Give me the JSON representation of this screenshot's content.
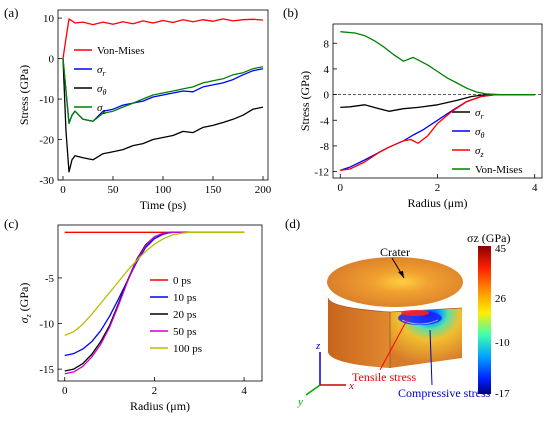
{
  "chart_data": [
    {
      "panel": "(a)",
      "type": "line",
      "xlabel": "Time (ps)",
      "ylabel": "Stress (GPa)",
      "xlim": [
        -5,
        205
      ],
      "ylim": [
        -30,
        12
      ],
      "xticks": [
        0,
        50,
        100,
        150,
        200
      ],
      "yticks": [
        -30,
        -20,
        -10,
        0,
        10
      ],
      "legend": "top-left",
      "series": [
        {
          "name": "Von-Mises",
          "color": "#ff0000",
          "x": [
            0,
            3,
            6,
            9,
            12,
            20,
            30,
            40,
            50,
            60,
            70,
            80,
            90,
            100,
            110,
            120,
            130,
            140,
            150,
            160,
            170,
            180,
            190,
            200
          ],
          "y": [
            0,
            5,
            9.8,
            9.3,
            8.8,
            9.0,
            8.4,
            9.0,
            8.5,
            9.1,
            8.6,
            9.3,
            8.8,
            9.4,
            8.9,
            9.6,
            9.1,
            9.6,
            9.2,
            9.8,
            9.3,
            9.6,
            9.7,
            9.5
          ]
        },
        {
          "name": "σr",
          "color": "#0000ff",
          "x": [
            0,
            3,
            6,
            9,
            12,
            20,
            30,
            40,
            50,
            60,
            70,
            80,
            90,
            100,
            110,
            120,
            130,
            140,
            150,
            160,
            170,
            180,
            190,
            200
          ],
          "y": [
            0,
            -8,
            -16,
            -14,
            -13,
            -15,
            -15.5,
            -13,
            -12.5,
            -11.5,
            -11,
            -10.5,
            -9.5,
            -9,
            -8.5,
            -8,
            -8.2,
            -7,
            -6.5,
            -6,
            -5.2,
            -4,
            -3,
            -2.5
          ]
        },
        {
          "name": "σθ",
          "color": "#000000",
          "x": [
            0,
            3,
            6,
            9,
            12,
            20,
            30,
            40,
            50,
            60,
            70,
            80,
            90,
            100,
            110,
            120,
            130,
            140,
            150,
            160,
            170,
            180,
            190,
            200
          ],
          "y": [
            0,
            -18,
            -28,
            -25,
            -24,
            -24.5,
            -25,
            -23.5,
            -23,
            -22.5,
            -21.5,
            -21,
            -20,
            -19.5,
            -19,
            -18,
            -18.3,
            -17,
            -16.5,
            -15.8,
            -15,
            -14,
            -12.5,
            -12
          ]
        },
        {
          "name": "σz",
          "color": "#008000",
          "x": [
            0,
            3,
            6,
            9,
            12,
            20,
            30,
            40,
            50,
            60,
            70,
            80,
            90,
            100,
            110,
            120,
            130,
            140,
            150,
            160,
            170,
            180,
            190,
            200
          ],
          "y": [
            0,
            -8,
            -16,
            -14,
            -13,
            -15,
            -15.5,
            -13.5,
            -13,
            -12,
            -11,
            -10,
            -9,
            -8.5,
            -8,
            -7.5,
            -7,
            -6,
            -5.5,
            -5,
            -4,
            -3.5,
            -2.5,
            -2
          ]
        }
      ]
    },
    {
      "panel": "(b)",
      "type": "line",
      "xlabel": "Radius (μm)",
      "ylabel": "Stress (GPa)",
      "xlim": [
        -0.15,
        4.15
      ],
      "ylim": [
        -13,
        11
      ],
      "xticks": [
        0,
        2,
        4
      ],
      "yticks": [
        -12,
        -8,
        -4,
        0,
        4,
        8
      ],
      "legend": "bottom-right",
      "series": [
        {
          "name": "σr",
          "color": "#000000",
          "x": [
            0,
            0.2,
            0.5,
            0.8,
            1.0,
            1.3,
            1.6,
            2.0,
            2.4,
            2.7,
            3.0,
            3.5,
            4.0
          ],
          "y": [
            -2.0,
            -1.9,
            -1.6,
            -2.2,
            -2.6,
            -2.2,
            -2.0,
            -1.6,
            -0.9,
            -0.3,
            0,
            0,
            0
          ]
        },
        {
          "name": "σθ",
          "color": "#0000ff",
          "x": [
            0,
            0.2,
            0.5,
            0.8,
            1.0,
            1.3,
            1.5,
            1.7,
            2.0,
            2.3,
            2.6,
            2.9,
            3.2,
            3.5,
            4.0
          ],
          "y": [
            -11.8,
            -11.3,
            -10.2,
            -9.0,
            -8.2,
            -7.2,
            -6.3,
            -5.5,
            -4.0,
            -2.5,
            -1.1,
            -0.3,
            0,
            0,
            0
          ]
        },
        {
          "name": "σz",
          "color": "#ff0000",
          "x": [
            0,
            0.2,
            0.5,
            0.8,
            1.0,
            1.3,
            1.45,
            1.6,
            1.8,
            2.0,
            2.3,
            2.6,
            2.9,
            3.2,
            3.5,
            4.0
          ],
          "y": [
            -11.8,
            -11.6,
            -10.5,
            -9.0,
            -8.2,
            -7.2,
            -7.0,
            -7.6,
            -6.4,
            -4.5,
            -2.6,
            -1.1,
            -0.3,
            0,
            0,
            0
          ]
        },
        {
          "name": "Von-Mises",
          "color": "#008000",
          "x": [
            0,
            0.3,
            0.5,
            0.7,
            0.9,
            1.1,
            1.3,
            1.5,
            1.6,
            1.8,
            2.0,
            2.2,
            2.4,
            2.6,
            2.8,
            3.0,
            3.3,
            3.6,
            4.0
          ],
          "y": [
            9.8,
            9.6,
            9.2,
            8.4,
            7.4,
            6.2,
            5.2,
            5.8,
            5.4,
            4.6,
            3.6,
            2.6,
            1.8,
            1.0,
            0.4,
            0.1,
            0,
            0,
            0
          ]
        }
      ]
    },
    {
      "panel": "(c)",
      "type": "line",
      "xlabel": "Radius (μm)",
      "ylabel": "σz (GPa)",
      "xlim": [
        -0.15,
        4.4
      ],
      "ylim": [
        -16.3,
        0.8
      ],
      "xticks": [
        0,
        2,
        4
      ],
      "yticks": [
        -15,
        -10,
        -5
      ],
      "legend": "bottom-right",
      "series": [
        {
          "name": "0 ps",
          "color": "#ff0000",
          "x": [
            0,
            1,
            2,
            3,
            4
          ],
          "y": [
            0,
            0,
            0,
            0,
            0
          ]
        },
        {
          "name": "10 ps",
          "color": "#0000ff",
          "x": [
            0,
            0.2,
            0.4,
            0.6,
            0.8,
            1.0,
            1.2,
            1.4,
            1.6,
            1.8,
            2.0,
            2.2,
            2.4,
            2.6,
            3.0,
            3.5,
            4.0
          ],
          "y": [
            -13.5,
            -13.3,
            -12.8,
            -12.0,
            -10.8,
            -9.2,
            -7.3,
            -5.3,
            -3.3,
            -1.7,
            -0.7,
            -0.2,
            0,
            0,
            0,
            0,
            0
          ]
        },
        {
          "name": "20 ps",
          "color": "#000000",
          "x": [
            0,
            0.2,
            0.4,
            0.6,
            0.8,
            1.0,
            1.2,
            1.4,
            1.6,
            1.8,
            2.0,
            2.2,
            2.4,
            2.6,
            3.0,
            3.5,
            4.0
          ],
          "y": [
            -15.2,
            -15.0,
            -14.4,
            -13.4,
            -12.0,
            -10.2,
            -7.8,
            -5.3,
            -3.0,
            -1.4,
            -0.5,
            -0.1,
            0,
            0,
            0,
            0,
            0
          ]
        },
        {
          "name": "50 ps",
          "color": "#cc00cc",
          "x": [
            0,
            0.2,
            0.4,
            0.6,
            0.8,
            1.0,
            1.2,
            1.4,
            1.6,
            1.8,
            2.0,
            2.2,
            2.4,
            2.6,
            3.0,
            3.5,
            4.0
          ],
          "y": [
            -15.5,
            -15.3,
            -14.7,
            -13.7,
            -12.3,
            -10.4,
            -8.0,
            -5.4,
            -3.1,
            -1.5,
            -0.5,
            -0.1,
            0,
            0,
            0,
            0,
            0
          ]
        },
        {
          "name": "100 ps",
          "color": "#bbbb00",
          "x": [
            0,
            0.2,
            0.4,
            0.6,
            0.8,
            1.0,
            1.2,
            1.4,
            1.6,
            1.8,
            2.0,
            2.2,
            2.4,
            2.6,
            2.8,
            3.0,
            3.5,
            4.0
          ],
          "y": [
            -11.3,
            -10.9,
            -10.1,
            -9.0,
            -7.8,
            -6.6,
            -5.4,
            -4.2,
            -3.1,
            -2.1,
            -1.3,
            -0.7,
            -0.3,
            -0.1,
            0,
            0,
            0,
            0
          ]
        }
      ]
    },
    {
      "panel": "(d)",
      "type": "heatmap",
      "colorbar_label": "σz (GPa)",
      "colorbar_ticks": [
        45,
        26,
        -10,
        -17
      ],
      "annotations": [
        "Crater",
        "Tensile stress",
        "Compressive stress"
      ],
      "axes": [
        "z",
        "x",
        "y"
      ]
    }
  ]
}
